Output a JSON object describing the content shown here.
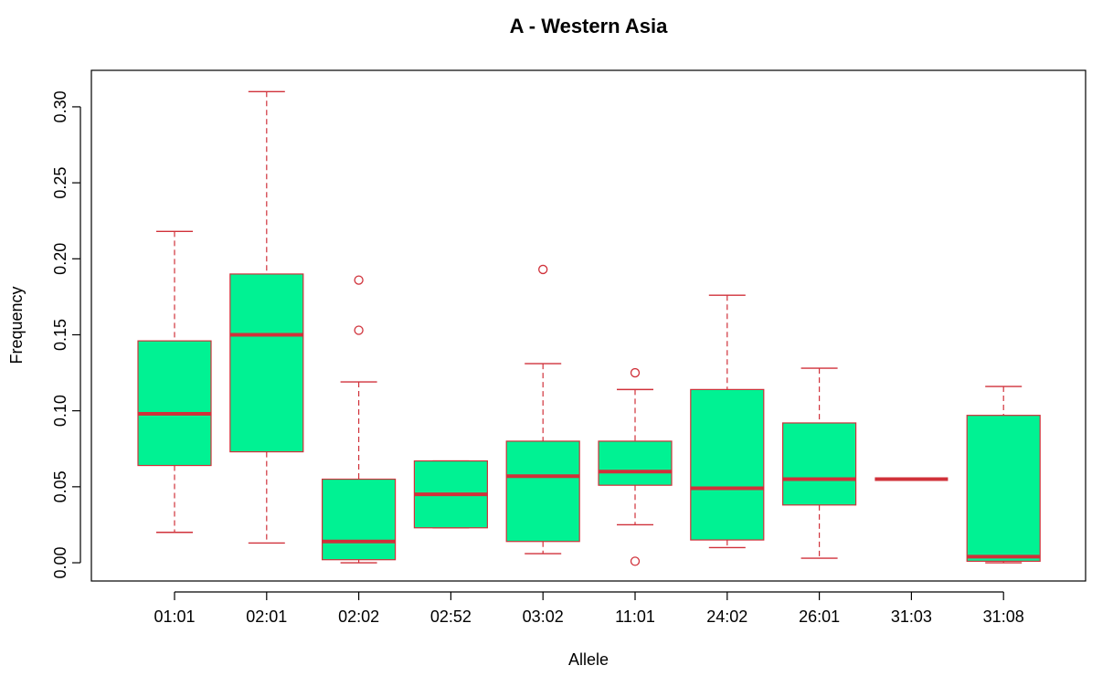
{
  "chart_data": {
    "type": "boxplot",
    "title": "A - Western Asia",
    "xlabel": "Allele",
    "ylabel": "Frequency",
    "ylim": [
      -0.012,
      0.324
    ],
    "yticks": [
      "0.00",
      "0.05",
      "0.10",
      "0.15",
      "0.20",
      "0.25",
      "0.30"
    ],
    "grid": false,
    "colors": {
      "box_fill": "#00f293",
      "box_stroke": "#d0313a",
      "axis": "#000000"
    },
    "categories": [
      "01:01",
      "02:01",
      "02:02",
      "02:52",
      "03:02",
      "11:01",
      "24:02",
      "26:01",
      "31:03",
      "31:08"
    ],
    "boxes": [
      {
        "category": "01:01",
        "whisker_low": 0.02,
        "q1": 0.064,
        "median": 0.098,
        "q3": 0.146,
        "whisker_high": 0.218,
        "outliers": []
      },
      {
        "category": "02:01",
        "whisker_low": 0.013,
        "q1": 0.073,
        "median": 0.15,
        "q3": 0.19,
        "whisker_high": 0.31,
        "outliers": []
      },
      {
        "category": "02:02",
        "whisker_low": 0.0,
        "q1": 0.002,
        "median": 0.014,
        "q3": 0.055,
        "whisker_high": 0.119,
        "outliers": [
          0.153,
          0.186
        ]
      },
      {
        "category": "02:52",
        "whisker_low": 0.023,
        "q1": 0.023,
        "median": 0.045,
        "q3": 0.067,
        "whisker_high": 0.067,
        "outliers": []
      },
      {
        "category": "03:02",
        "whisker_low": 0.006,
        "q1": 0.014,
        "median": 0.057,
        "q3": 0.08,
        "whisker_high": 0.131,
        "outliers": [
          0.193
        ]
      },
      {
        "category": "11:01",
        "whisker_low": 0.025,
        "q1": 0.051,
        "median": 0.06,
        "q3": 0.08,
        "whisker_high": 0.114,
        "outliers": [
          0.001,
          0.125
        ]
      },
      {
        "category": "24:02",
        "whisker_low": 0.01,
        "q1": 0.015,
        "median": 0.049,
        "q3": 0.114,
        "whisker_high": 0.176,
        "outliers": []
      },
      {
        "category": "26:01",
        "whisker_low": 0.003,
        "q1": 0.038,
        "median": 0.055,
        "q3": 0.092,
        "whisker_high": 0.128,
        "outliers": []
      },
      {
        "category": "31:03",
        "whisker_low": 0.055,
        "q1": 0.055,
        "median": 0.055,
        "q3": 0.055,
        "whisker_high": 0.055,
        "outliers": []
      },
      {
        "category": "31:08",
        "whisker_low": 0.0,
        "q1": 0.001,
        "median": 0.004,
        "q3": 0.097,
        "whisker_high": 0.116,
        "outliers": []
      }
    ]
  }
}
